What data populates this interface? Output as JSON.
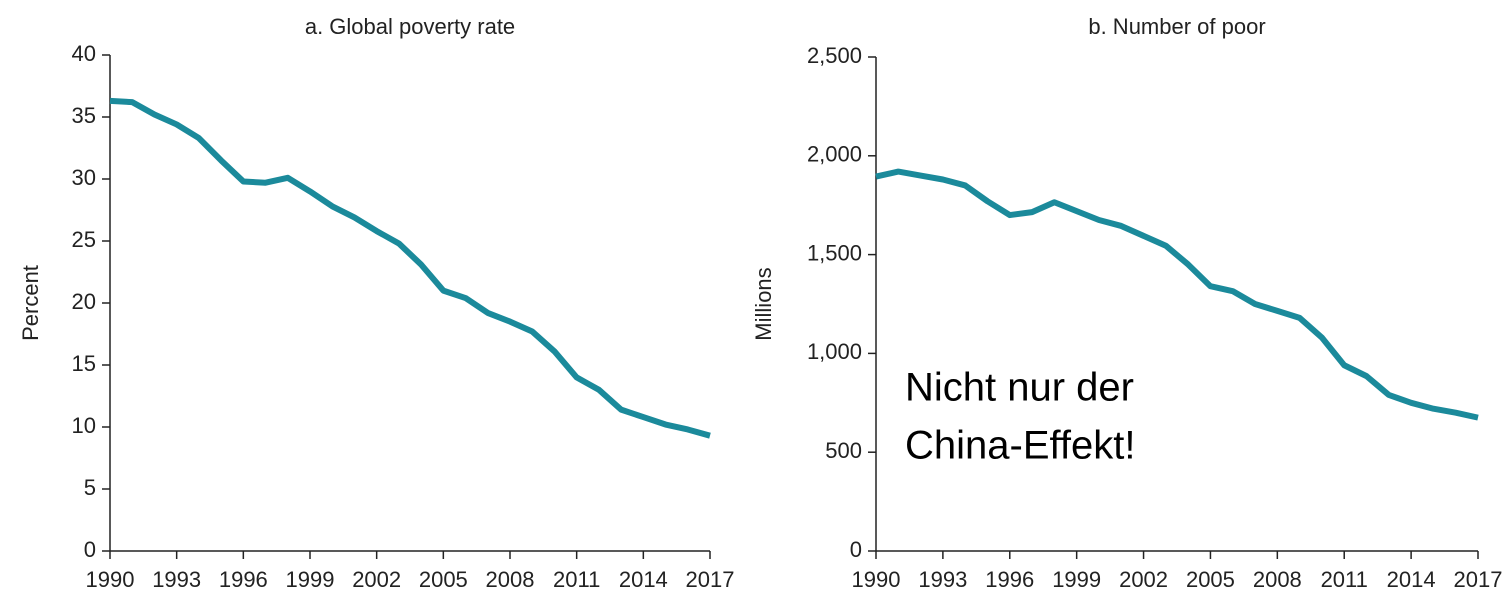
{
  "chart_data": [
    {
      "type": "line",
      "title": "a. Global poverty rate",
      "y_label": "Percent",
      "x": [
        1990,
        1991,
        1992,
        1993,
        1994,
        1995,
        1996,
        1997,
        1998,
        1999,
        2000,
        2001,
        2002,
        2003,
        2004,
        2005,
        2006,
        2007,
        2008,
        2009,
        2010,
        2011,
        2012,
        2013,
        2014,
        2015,
        2016,
        2017
      ],
      "series": [
        {
          "name": "Global poverty rate",
          "color": "#1b8a9b",
          "values": [
            36.3,
            36.2,
            35.2,
            34.4,
            33.3,
            31.5,
            29.8,
            29.7,
            30.1,
            29.0,
            27.8,
            26.9,
            25.8,
            24.8,
            23.1,
            21.0,
            20.4,
            19.2,
            18.5,
            17.7,
            16.1,
            14.0,
            13.0,
            11.4,
            10.8,
            10.2,
            9.8,
            9.3
          ]
        }
      ],
      "xlim": [
        1990,
        2017
      ],
      "xticks": [
        1990,
        1993,
        1996,
        1999,
        2002,
        2005,
        2008,
        2011,
        2014,
        2017
      ],
      "ylim": [
        0,
        40
      ],
      "yticks": [
        0,
        5,
        10,
        15,
        20,
        25,
        30,
        35,
        40
      ],
      "grid": false
    },
    {
      "type": "line",
      "title": "b. Number of poor",
      "y_label": "Millions",
      "x": [
        1990,
        1991,
        1992,
        1993,
        1994,
        1995,
        1996,
        1997,
        1998,
        1999,
        2000,
        2001,
        2002,
        2003,
        2004,
        2005,
        2006,
        2007,
        2008,
        2009,
        2010,
        2011,
        2012,
        2013,
        2014,
        2015,
        2016,
        2017
      ],
      "series": [
        {
          "name": "Number of poor",
          "color": "#1b8a9b",
          "values": [
            1895,
            1920,
            1900,
            1880,
            1850,
            1770,
            1700,
            1715,
            1765,
            1720,
            1675,
            1645,
            1595,
            1545,
            1450,
            1340,
            1315,
            1250,
            1215,
            1180,
            1080,
            940,
            885,
            790,
            750,
            720,
            700,
            675
          ]
        }
      ],
      "xlim": [
        1990,
        2017
      ],
      "xticks": [
        1990,
        1993,
        1996,
        1999,
        2002,
        2005,
        2008,
        2011,
        2014,
        2017
      ],
      "ylim": [
        0,
        2500
      ],
      "yticks": [
        0,
        500,
        {
          "value": 1000,
          "label": "1,000"
        },
        {
          "value": 1500,
          "label": "1,500"
        },
        {
          "value": 2000,
          "label": "2,000"
        },
        {
          "value": 2500,
          "label": "2,500"
        }
      ],
      "grid": false,
      "annotation": [
        "Nicht nur der",
        "China-Effekt!"
      ]
    }
  ]
}
